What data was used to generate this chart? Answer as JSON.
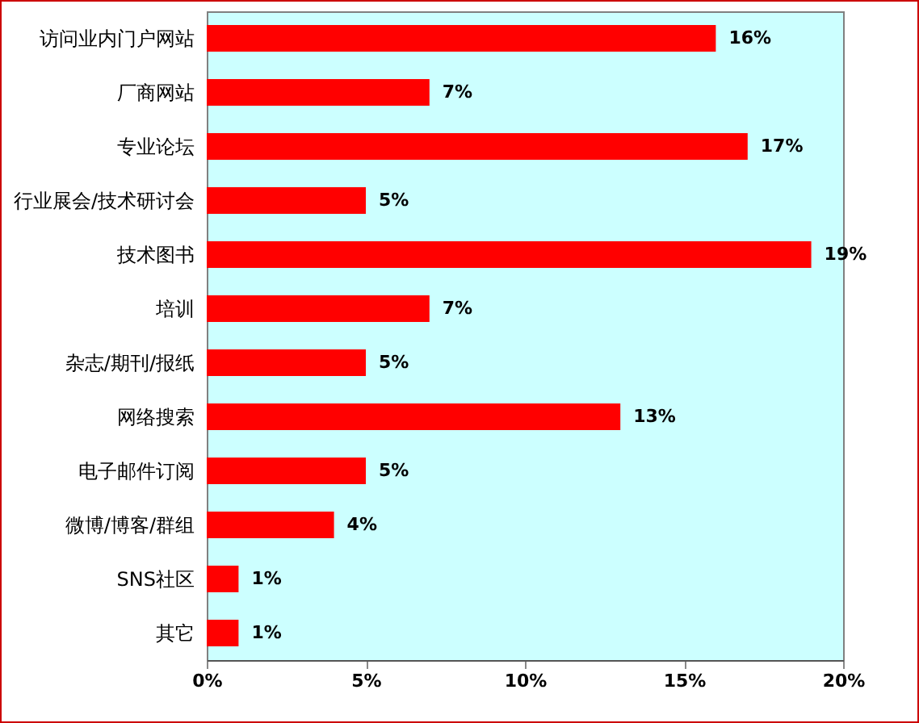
{
  "chart_data": {
    "type": "bar",
    "orientation": "horizontal",
    "categories": [
      "访问业内门户网站",
      "厂商网站",
      "专业论坛",
      "行业展会/技术研讨会",
      "技术图书",
      "培训",
      "杂志/期刊/报纸",
      "网络搜索",
      "电子邮件订阅",
      "微博/博客/群组",
      "SNS社区",
      "其它"
    ],
    "values": [
      16,
      7,
      17,
      5,
      19,
      7,
      5,
      13,
      5,
      4,
      1,
      1
    ],
    "value_labels": [
      "16%",
      "7%",
      "17%",
      "5%",
      "19%",
      "7%",
      "5%",
      "13%",
      "5%",
      "4%",
      "1%",
      "1%"
    ],
    "color": "#ff0000",
    "xlim": [
      0,
      20
    ],
    "xticks": [
      {
        "value": 0,
        "label": "0%"
      },
      {
        "value": 5,
        "label": "5%"
      },
      {
        "value": 10,
        "label": "10%"
      },
      {
        "value": 15,
        "label": "15%"
      },
      {
        "value": 20,
        "label": "20%"
      }
    ],
    "grid": false
  }
}
